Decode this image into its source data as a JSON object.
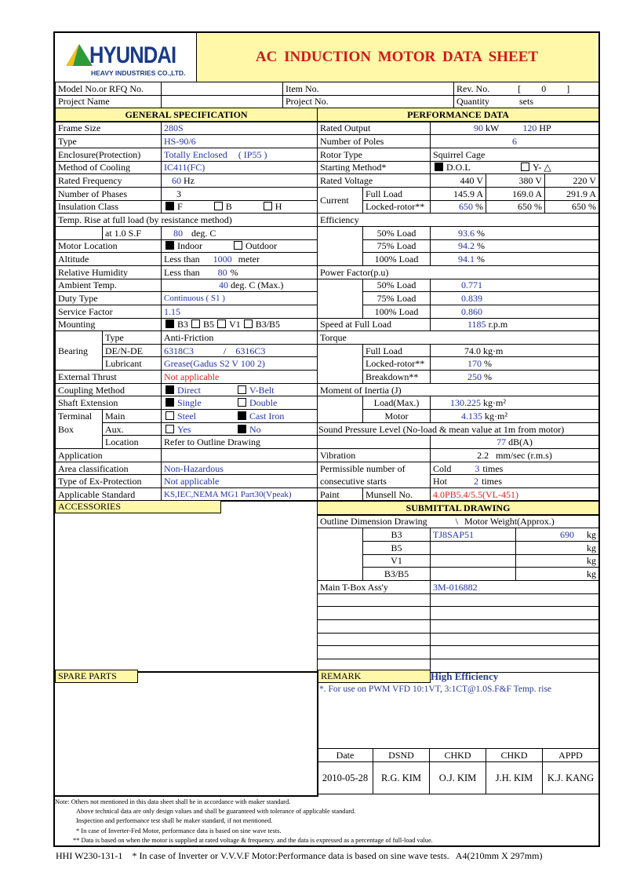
{
  "header": {
    "logo_main": "HYUNDAI",
    "logo_sub": "HEAVY INDUSTRIES CO.,LTD.",
    "title": "AC INDUCTION MOTOR DATA SHEET",
    "brand_green": "#2e9a3a",
    "brand_yellow": "#f0c020",
    "brand_blue": "#1a3a8a",
    "title_color": "#d01818"
  },
  "info": {
    "model_label": "Model No.or RFQ No.",
    "item_label": "Item No.",
    "rev_label": "Rev. No.",
    "rev_value": "0",
    "project_name_label": "Project Name",
    "project_no_label": "Project No.",
    "quantity_label": "Quantity",
    "quantity_unit": "sets"
  },
  "gen": {
    "title": "GENERAL SPECIFICATION",
    "frame_l": "Frame Size",
    "frame": "280S",
    "type_l": "Type",
    "type": "HS-90/6",
    "encl_l": "Enclosure(Protection)",
    "encl": "Totally Enclosed",
    "ip": "( IP55 )",
    "cool_l": "Method of Cooling",
    "cool": "IC411(FC)",
    "freq_l": "Rated Frequency",
    "freq": "60",
    "freq_u": "Hz",
    "phase_l": "Number of Phases",
    "phase": "3",
    "ins_l": "Insulation Class",
    "ins": [
      {
        "label": "F",
        "checked": true
      },
      {
        "label": "B",
        "checked": false
      },
      {
        "label": "H",
        "checked": false
      }
    ],
    "temp_l": "Temp. Rise at full load (by resistance method)",
    "sf10_l": "at 1.0 S.F",
    "temp": "80",
    "temp_u": "deg. C",
    "loc_l": "Motor Location",
    "loc": [
      {
        "label": "Indoor",
        "checked": true
      },
      {
        "label": "Outdoor",
        "checked": false
      }
    ],
    "alt_l": "Altitude",
    "alt_pre": "Less than",
    "alt": "1000",
    "alt_u": "meter",
    "hum_l": "Relative Humidity",
    "hum_pre": "Less than",
    "hum": "80",
    "hum_u": "%",
    "amb_l": "Ambient Temp.",
    "amb": "40",
    "amb_u": "deg. C (Max.)",
    "duty_l": "Duty Type",
    "duty": "Continuous ( S1 )",
    "sf_l": "Service Factor",
    "sf": "1.15",
    "mount_l": "Mounting",
    "mount": [
      {
        "label": "B3",
        "checked": true
      },
      {
        "label": "B5",
        "checked": false
      },
      {
        "label": "V1",
        "checked": false
      },
      {
        "label": "B3/B5",
        "checked": false
      }
    ],
    "bear_l": "Bearing",
    "btype_l": "Type",
    "btype": "Anti-Friction",
    "bde_l": "DE/N-DE",
    "bde": "6318C3",
    "bnde": "6316C3",
    "blub_l": "Lubricant",
    "blub": "Grease(Gadus S2 V 100 2)",
    "thrust_l": "External Thrust",
    "thrust": "Not applicable",
    "coup_l": "Coupling Method",
    "coup": [
      {
        "label": "Direct",
        "checked": true
      },
      {
        "label": "V-Belt",
        "checked": false
      }
    ],
    "shaft_l": "Shaft Extension",
    "shaft": [
      {
        "label": "Single",
        "checked": true
      },
      {
        "label": "Double",
        "checked": false
      }
    ],
    "tb_l1": "Terminal",
    "tb_l2": "Box",
    "tbm_l": "Main",
    "tbm": [
      {
        "label": "Steel",
        "checked": false
      },
      {
        "label": "Cast Iron",
        "checked": true
      }
    ],
    "tba_l": "Aux.",
    "tba": [
      {
        "label": "Yes",
        "checked": false
      },
      {
        "label": "No",
        "checked": true
      }
    ],
    "tbl_l": "Location",
    "tbl": "Refer to Outline Drawing",
    "app_l": "Application",
    "app": "",
    "area_l": "Area classification",
    "area": "Non-Hazardous",
    "exp_l": "Type of Ex-Protection",
    "exp": "Not applicable",
    "std_l": "Applicable Standard",
    "std": "KS,IEC,NEMA MG1 Part30(Vpeak)"
  },
  "perf": {
    "title": "PERFORMANCE DATA",
    "out_l": "Rated Output",
    "kw": "90",
    "kw_u": "kW",
    "hp": "120",
    "hp_u": "HP",
    "poles_l": "Number of Poles",
    "poles": "6",
    "rotor_l": "Rotor Type",
    "rotor": "Squirrel Cage",
    "start_l": "Starting Method*",
    "start": [
      {
        "label": "D.O.L",
        "checked": true
      },
      {
        "label": "Y- △",
        "checked": false
      }
    ],
    "volt_l": "Rated Voltage",
    "volts": [
      "440",
      "380",
      "220"
    ],
    "volt_u": "V",
    "cur_l": "Current",
    "fl_l": "Full Load",
    "fl": [
      "145.9",
      "169.0",
      "291.9"
    ],
    "cur_u": "A",
    "lr_l": "Locked-rotor**",
    "lr": [
      "650",
      "650",
      "650"
    ],
    "pct": "%",
    "eff_l": "Efficiency",
    "eff": [
      {
        "l": "50% Load",
        "v": "93.6"
      },
      {
        "l": "75% Load",
        "v": "94.2"
      },
      {
        "l": "100% Load",
        "v": "94.1"
      }
    ],
    "pf_l": "Power Factor(p.u)",
    "pf": [
      {
        "l": "50% Load",
        "v": "0.771"
      },
      {
        "l": "75% Load",
        "v": "0.839"
      },
      {
        "l": "100% Load",
        "v": "0.860"
      }
    ],
    "speed_l": "Speed at Full Load",
    "speed": "1185",
    "speed_u": "r.p.m",
    "tq_l": "Torque",
    "tfl_l": "Full Load",
    "tfl": "74.0",
    "tfl_u": "kg·m",
    "tlr_l": "Locked-rotor**",
    "tlr": "170",
    "tbd_l": "Breakdown**",
    "tbd": "250",
    "j_l": "Moment of Inertia (J)",
    "jl_l": "Load(Max.)",
    "jl": "130.225",
    "j_u": "kg·m²",
    "jm_l": "Motor",
    "jm": "4.135",
    "snd_l": "Sound Pressure Level (No-load & mean value at 1m from motor)",
    "snd": "77",
    "snd_u": "dB(A)",
    "vib_l": "Vibration",
    "vib": "2.2",
    "vib_u": "mm/sec (r.m.s)",
    "starts_l1": "Permissible number of",
    "starts_l2": "consecutive starts",
    "cold_l": "Cold",
    "cold": "3",
    "hot_l": "Hot",
    "hot": "2",
    "times": "times",
    "paint_l": "Paint",
    "mun_l": "Munsell No.",
    "mun": "4.0PB5.4/5.5(VL-451)"
  },
  "acc": {
    "title": "ACCESSORIES"
  },
  "sub": {
    "title": "SUBMITTAL DRAWING",
    "outline_l": "Outline Dimension Drawing",
    "sep": "\\",
    "weight_l": "Motor Weight(Approx.)",
    "kg": "kg",
    "rows": [
      {
        "l": "B3",
        "dwg": "TJ8SAP51",
        "w": "690"
      },
      {
        "l": "B5",
        "dwg": "",
        "w": ""
      },
      {
        "l": "V1",
        "dwg": "",
        "w": ""
      },
      {
        "l": "B3/B5",
        "dwg": "",
        "w": ""
      }
    ],
    "tbox_l": "Main T-Box Ass'y",
    "tbox": "3M-016882"
  },
  "spare": {
    "title": "SPARE PARTS"
  },
  "remark": {
    "title": "REMARK",
    "highlight": "High Efficiency",
    "text": "*.  For use on PWM VFD 10:1VT, 3:1CT@1.0S.F&F Temp. rise"
  },
  "sign": {
    "heads": [
      "Date",
      "DSND",
      "CHKD",
      "CHKD",
      "APPD"
    ],
    "vals": [
      "2010-05-28",
      "R.G. KIM",
      "O.J. KIM",
      "J.H. KIM",
      "K.J. KANG"
    ]
  },
  "notes": [
    "Note: Others not mentioned in this data sheet shall be in accordance with maker standard.",
    "Above technical data are only design values and shall be guaranteed with tolerance of applicable standard.",
    "Inspection and performance test shall be maker standard,  if not mentioned.",
    "* In case of Inverter-Fed Motor, performance data is based on sine wave tests.",
    "** Data is based on when the motor is supplied at rated voltage & frequency. and the data is expressed as a percentage of full-load value."
  ],
  "footer": {
    "code": "HHI W230-131-1",
    "text": "* In case of Inverter or V.V.V.F Motor:Performance data is based on sine wave tests.",
    "size": "A4(210mm X 297mm)"
  }
}
